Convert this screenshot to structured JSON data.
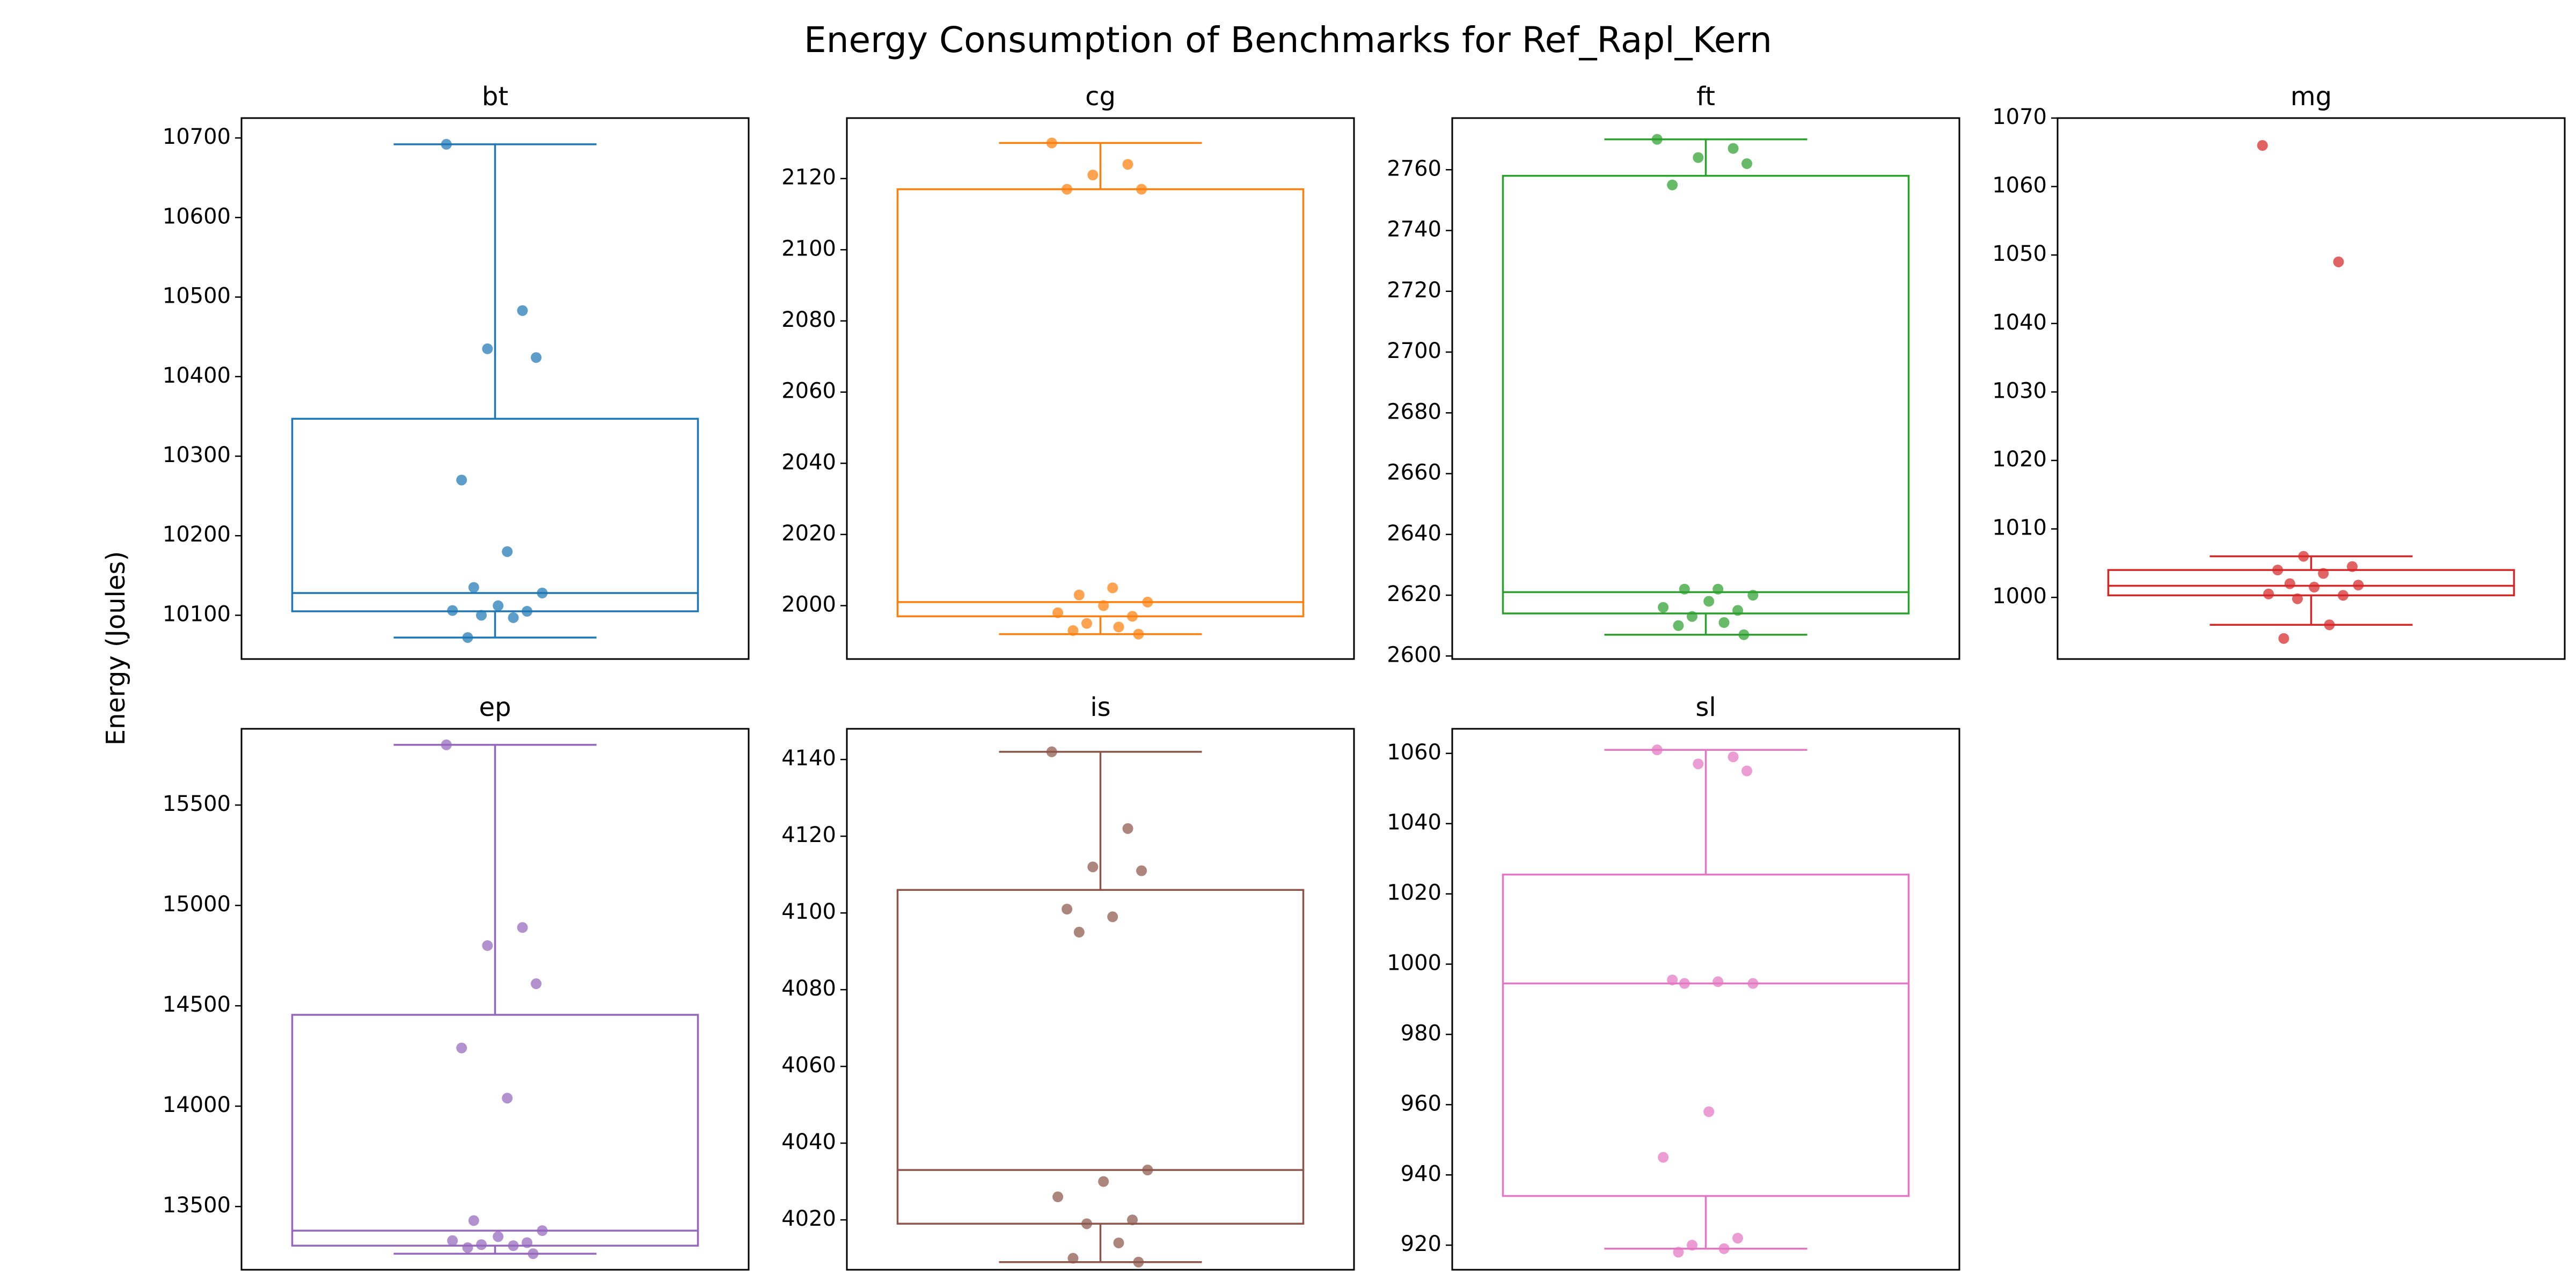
{
  "title": "Energy Consumption of Benchmarks for Ref_Rapl_Kern",
  "ylabel": "Energy (Joules)",
  "chart_data": [
    {
      "type": "box",
      "name": "bt",
      "color": "#1f77b4",
      "ylim": [
        10045,
        10725
      ],
      "yticks": [
        10100,
        10200,
        10300,
        10400,
        10500,
        10600,
        10700
      ],
      "stats": {
        "min": 10072,
        "q1": 10105,
        "median": 10128,
        "q3": 10347,
        "max": 10692
      },
      "points": [
        10692,
        10483,
        10435,
        10424,
        10270,
        10180,
        10135,
        10128,
        10112,
        10106,
        10105,
        10100,
        10097,
        10072
      ]
    },
    {
      "type": "box",
      "name": "cg",
      "color": "#ff7f0e",
      "ylim": [
        1985,
        2137
      ],
      "yticks": [
        2000,
        2020,
        2040,
        2060,
        2080,
        2100,
        2120
      ],
      "stats": {
        "min": 1992,
        "q1": 1997,
        "median": 2001,
        "q3": 2117,
        "max": 2130
      },
      "points": [
        2130,
        2124,
        2121,
        2117,
        2117,
        2005,
        2003,
        2001,
        2000,
        1998,
        1997,
        1995,
        1994,
        1993,
        1992
      ]
    },
    {
      "type": "box",
      "name": "ft",
      "color": "#2ca02c",
      "ylim": [
        2599,
        2777
      ],
      "yticks": [
        2600,
        2620,
        2640,
        2660,
        2680,
        2700,
        2720,
        2740,
        2760
      ],
      "stats": {
        "min": 2607,
        "q1": 2614,
        "median": 2621,
        "q3": 2758,
        "max": 2770
      },
      "points": [
        2770,
        2767,
        2764,
        2762,
        2755,
        2622,
        2622,
        2620,
        2618,
        2616,
        2615,
        2613,
        2611,
        2610,
        2607
      ]
    },
    {
      "type": "box",
      "name": "mg",
      "color": "#d62728",
      "ylim": [
        991,
        1070
      ],
      "yticks": [
        1000,
        1010,
        1020,
        1030,
        1040,
        1050,
        1060,
        1070
      ],
      "stats": {
        "min": 996,
        "q1": 1000.3,
        "median": 1001.7,
        "q3": 1004,
        "max": 1006
      },
      "points": [
        1066,
        1049,
        1006,
        1004.5,
        1004,
        1003.5,
        1002,
        1001.8,
        1001.5,
        1000.5,
        1000.3,
        999.8,
        996,
        994
      ]
    },
    {
      "type": "box",
      "name": "ep",
      "color": "#9467bd",
      "ylim": [
        13185,
        15880
      ],
      "yticks": [
        13500,
        14000,
        14500,
        15000,
        15500
      ],
      "stats": {
        "min": 13265,
        "q1": 13305,
        "median": 13380,
        "q3": 14455,
        "max": 15800
      },
      "points": [
        15800,
        14890,
        14800,
        14610,
        14290,
        14040,
        13430,
        13380,
        13350,
        13330,
        13320,
        13310,
        13305,
        13295,
        13265
      ]
    },
    {
      "type": "box",
      "name": "is",
      "color": "#8c564b",
      "ylim": [
        4007,
        4148
      ],
      "yticks": [
        4020,
        4040,
        4060,
        4080,
        4100,
        4120,
        4140
      ],
      "stats": {
        "min": 4009,
        "q1": 4019,
        "median": 4033,
        "q3": 4106,
        "max": 4142
      },
      "points": [
        4142,
        4122,
        4112,
        4111,
        4101,
        4099,
        4095,
        4033,
        4030,
        4026,
        4020,
        4019,
        4014,
        4010,
        4009
      ]
    },
    {
      "type": "box",
      "name": "sl",
      "color": "#e377c2",
      "ylim": [
        913,
        1067
      ],
      "yticks": [
        920,
        940,
        960,
        980,
        1000,
        1020,
        1040,
        1060
      ],
      "stats": {
        "min": 919,
        "q1": 934,
        "median": 994.5,
        "q3": 1025.5,
        "max": 1061
      },
      "points": [
        1061,
        1059,
        1057,
        1055,
        995.5,
        995,
        994.5,
        994.5,
        958,
        945,
        922,
        920,
        919,
        918
      ]
    }
  ]
}
